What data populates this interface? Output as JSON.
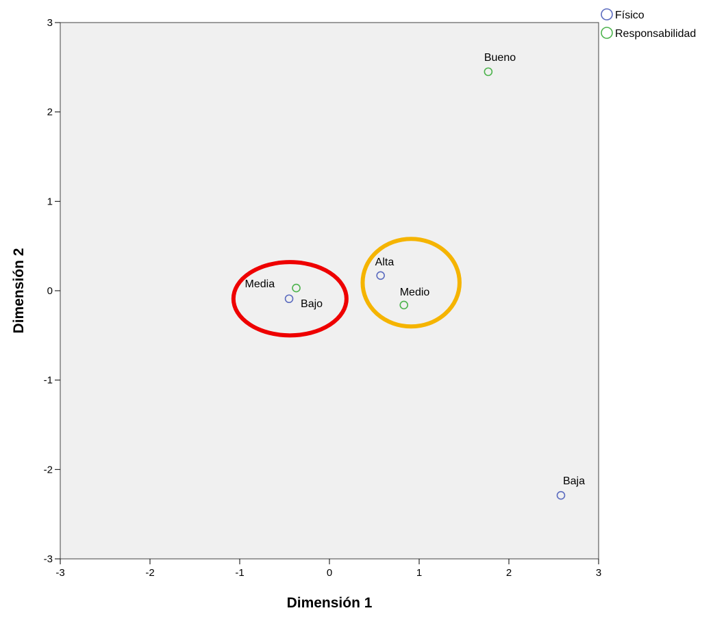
{
  "chart_data": {
    "type": "scatter",
    "xlabel": "Dimensión 1",
    "ylabel": "Dimensión 2",
    "xlim": [
      -3,
      3
    ],
    "ylim": [
      -3,
      3
    ],
    "xticks": [
      "-3",
      "-2",
      "-1",
      "0",
      "1",
      "2",
      "3"
    ],
    "yticks": [
      "-3",
      "-2",
      "-1",
      "0",
      "1",
      "2",
      "3"
    ],
    "grid": false,
    "legend": "top-right outside",
    "plot_background": "#f0f0f0",
    "series": [
      {
        "name": "Físico",
        "color": "#5b6bbf",
        "marker": "open-circle",
        "points": [
          {
            "label": "Alta",
            "x": 0.57,
            "y": 0.17
          },
          {
            "label": "Bajo",
            "x": -0.45,
            "y": -0.09
          },
          {
            "label": "Baja",
            "x": 2.58,
            "y": -2.29
          }
        ]
      },
      {
        "name": "Responsabilidad",
        "color": "#4cb34c",
        "marker": "open-circle",
        "points": [
          {
            "label": "Bueno",
            "x": 1.77,
            "y": 2.45
          },
          {
            "label": "Media",
            "x": -0.37,
            "y": 0.03
          },
          {
            "label": "Medio",
            "x": 0.83,
            "y": -0.16
          }
        ]
      }
    ],
    "annotations": [
      {
        "shape": "ellipse",
        "color": "#ee0000",
        "cx": -0.44,
        "cy": -0.09,
        "rx": 0.63,
        "ry": 0.41
      },
      {
        "shape": "ellipse",
        "color": "#f5b400",
        "cx": 0.91,
        "cy": 0.09,
        "rx": 0.54,
        "ry": 0.49
      }
    ]
  }
}
